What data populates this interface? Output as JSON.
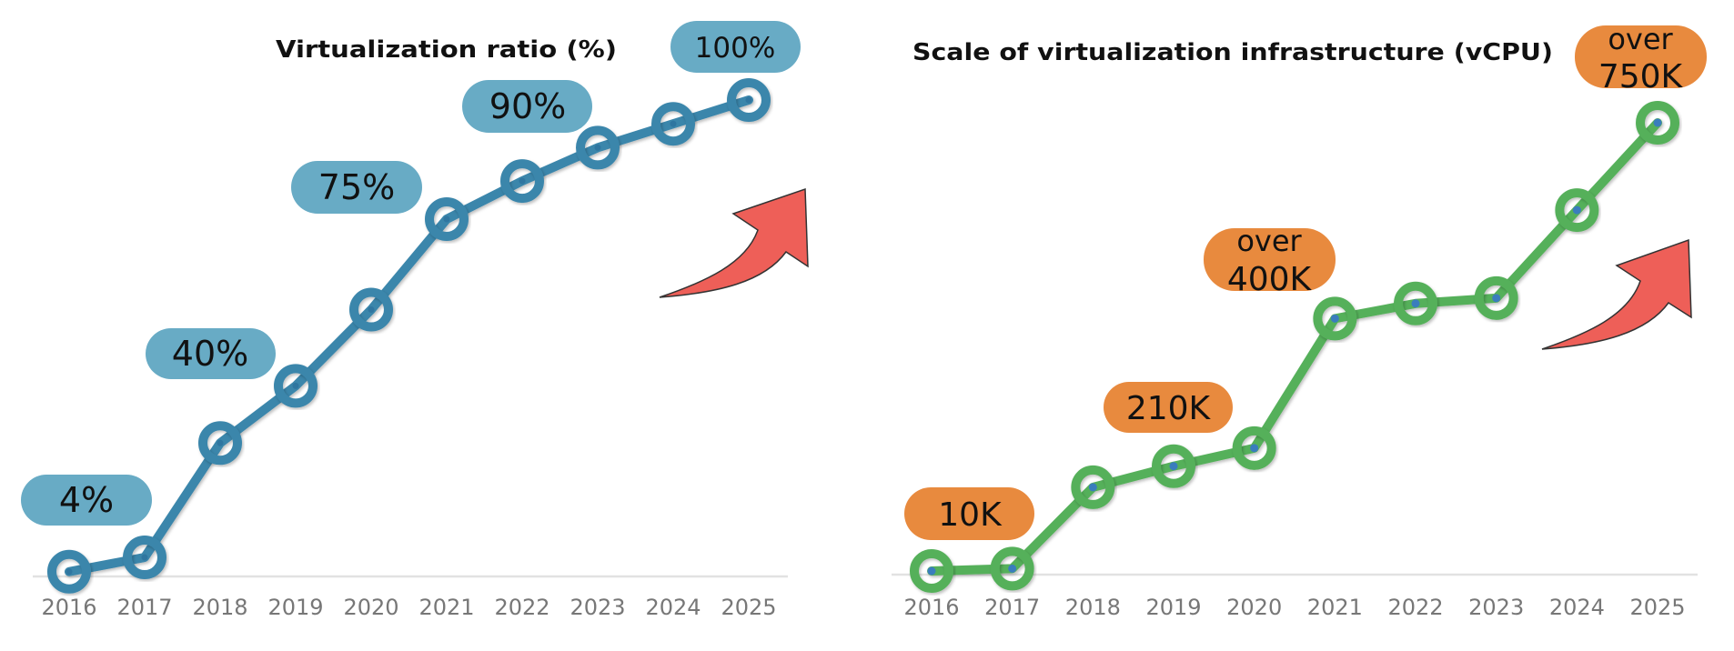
{
  "chart_data": [
    {
      "type": "line",
      "title": "Virtualization ratio (%)",
      "xlabel": "",
      "ylabel": "",
      "categories": [
        "2016",
        "2017",
        "2018",
        "2019",
        "2020",
        "2021",
        "2022",
        "2023",
        "2024",
        "2025"
      ],
      "series": [
        {
          "name": "Virtualization ratio (%)",
          "values": [
            1,
            4,
            28,
            40,
            56,
            75,
            83,
            90,
            95,
            100
          ]
        }
      ],
      "ylim": [
        0,
        100
      ],
      "grid": false,
      "annotations": [
        {
          "year": "2017",
          "text": "4%"
        },
        {
          "year": "2019",
          "text": "40%"
        },
        {
          "year": "2021",
          "text": "75%"
        },
        {
          "year": "2023",
          "text": "90%"
        },
        {
          "year": "2025",
          "text": "100%"
        }
      ],
      "colors": {
        "line": "#3b86ab",
        "label_bg": "#68abc5",
        "dot": "#2f76a0",
        "axis": "#e2e2e2",
        "tick": "#777777",
        "arrow": "#ee5f58"
      }
    },
    {
      "type": "line",
      "title": "Scale of virtualization infrastructure (vCPU)",
      "xlabel": "",
      "ylabel": "",
      "categories": [
        "2016",
        "2017",
        "2018",
        "2019",
        "2020",
        "2021",
        "2022",
        "2023",
        "2024",
        "2025"
      ],
      "series": [
        {
          "name": "vCPU (K)",
          "values": [
            6,
            10,
            145,
            180,
            210,
            425,
            450,
            459,
            605,
            750
          ]
        }
      ],
      "ylim": [
        0,
        750
      ],
      "grid": false,
      "annotations": [
        {
          "year": "2017",
          "lines": [
            "10K"
          ]
        },
        {
          "year": "2020",
          "lines": [
            "210K"
          ]
        },
        {
          "year": "2021",
          "lines": [
            "over",
            "400K"
          ]
        },
        {
          "year": "2025",
          "lines": [
            "over",
            "750K"
          ]
        }
      ],
      "colors": {
        "line": "#55b05a",
        "label_bg": "#e88a3e",
        "dot": "#3a7dbd",
        "axis": "#e2e2e2",
        "tick": "#777777",
        "arrow": "#ee5f58"
      }
    }
  ],
  "icons": {
    "trend_arrow": "curved-up-arrow-icon"
  }
}
